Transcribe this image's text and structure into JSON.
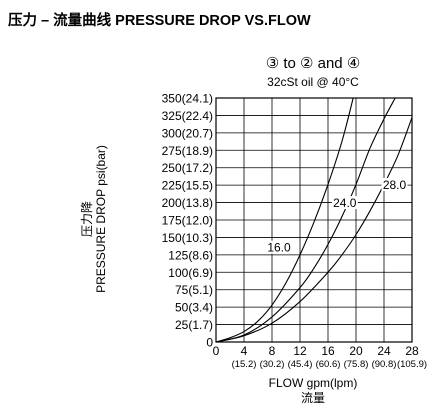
{
  "header": {
    "title": "压力 – 流量曲线 PRESSURE DROP VS.FLOW"
  },
  "chart_data": {
    "type": "line",
    "title": "③ to ② and ④",
    "subtitle": "32cSt  oil @ 40°C",
    "ylabel": [
      "压力降",
      "PRESSURE DROP psi(bar)"
    ],
    "xlabel": [
      "FLOW gpm(lpm)",
      "流量"
    ],
    "xlim": [
      0,
      28
    ],
    "ylim": [
      0,
      350
    ],
    "grid": true,
    "x_ticks": [
      0,
      4,
      8,
      12,
      16,
      20,
      24,
      28
    ],
    "x_tick_labels": [
      "0",
      "4",
      "8",
      "12",
      "16",
      "20",
      "24",
      "28"
    ],
    "x_secondary_labels": [
      "(15.2)",
      "(30.2)",
      "(45.4)",
      "(60.6)",
      "(75.8)",
      "(90.8)",
      "(105.9)"
    ],
    "y_ticks": [
      0,
      25,
      50,
      75,
      100,
      125,
      150,
      175,
      200,
      225,
      250,
      275,
      300,
      325,
      350
    ],
    "y_tick_labels": [
      "0",
      "25(1.7)",
      "50(3.4)",
      "75(5.1)",
      "100(6.9)",
      "125(8.6)",
      "150(10.3)",
      "175(12.0)",
      "200(13.8)",
      "225(15.5)",
      "250(17.2)",
      "275(18.9)",
      "300(20.7)",
      "325(22.4)",
      "350(24.1)"
    ],
    "series": [
      {
        "name": "16.0",
        "x": [
          0,
          2,
          4,
          6,
          8,
          10,
          12,
          14,
          16,
          18,
          19.6
        ],
        "y": [
          0,
          6,
          15,
          30,
          53,
          85,
          125,
          172,
          226,
          288,
          350
        ]
      },
      {
        "name": "24.0",
        "x": [
          0,
          4,
          8,
          12,
          14,
          16,
          18,
          20,
          22,
          24,
          25.6
        ],
        "y": [
          0,
          10,
          36,
          78,
          106,
          140,
          180,
          226,
          278,
          320,
          350
        ]
      },
      {
        "name": "28.0",
        "x": [
          0,
          4,
          8,
          12,
          16,
          18,
          20,
          22,
          24,
          26,
          28
        ],
        "y": [
          0,
          9,
          27,
          58,
          100,
          125,
          154,
          188,
          226,
          268,
          322
        ]
      }
    ],
    "series_label_positions": [
      {
        "x": 9.0,
        "y": 131
      },
      {
        "x": 18.4,
        "y": 195
      },
      {
        "x": 25.5,
        "y": 221
      }
    ]
  }
}
